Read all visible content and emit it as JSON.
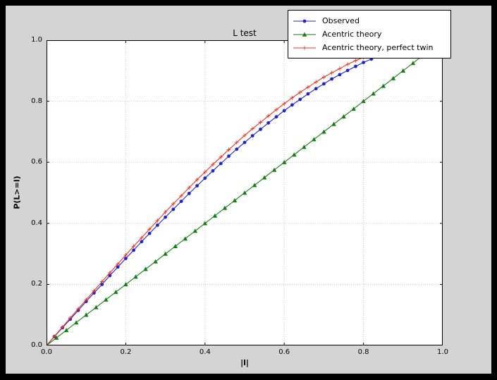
{
  "colors": {
    "outer_bg": "#000000",
    "figure_bg": "#d4d4d4",
    "plot_bg": "#ffffff",
    "grid": "#c8c8c8",
    "axis": "#000000"
  },
  "chart_data": {
    "type": "line",
    "title": "L test",
    "xlabel": "|l|",
    "ylabel": "P(L>=l)",
    "xlim": [
      0.0,
      1.0
    ],
    "ylim": [
      0.0,
      1.0
    ],
    "x_ticks": [
      "0.0",
      "0.2",
      "0.4",
      "0.6",
      "0.8",
      "1.0"
    ],
    "y_ticks": [
      "0.0",
      "0.2",
      "0.4",
      "0.6",
      "0.8",
      "1.0"
    ],
    "grid": "dotted",
    "legend_position": "upper right",
    "series": [
      {
        "name": "Observed",
        "color": "#2222cc",
        "marker": "circle",
        "x": [
          0,
          0.02,
          0.04,
          0.06,
          0.08,
          0.1,
          0.12,
          0.14,
          0.16,
          0.18,
          0.2,
          0.22,
          0.24,
          0.26,
          0.28,
          0.3,
          0.32,
          0.34,
          0.36,
          0.38,
          0.4,
          0.42,
          0.44,
          0.46,
          0.48,
          0.5,
          0.52,
          0.54,
          0.56,
          0.58,
          0.6,
          0.62,
          0.64,
          0.66,
          0.68,
          0.7,
          0.72,
          0.74,
          0.76,
          0.78,
          0.8,
          0.82,
          0.84,
          0.86
        ],
        "y": [
          0,
          0.029,
          0.058,
          0.086,
          0.115,
          0.144,
          0.172,
          0.2,
          0.229,
          0.257,
          0.285,
          0.312,
          0.34,
          0.367,
          0.394,
          0.42,
          0.446,
          0.472,
          0.498,
          0.523,
          0.548,
          0.572,
          0.596,
          0.62,
          0.643,
          0.665,
          0.687,
          0.708,
          0.729,
          0.749,
          0.769,
          0.788,
          0.806,
          0.824,
          0.841,
          0.857,
          0.873,
          0.887,
          0.901,
          0.914,
          0.927,
          0.938,
          0.949,
          0.959
        ]
      },
      {
        "name": "Acentric theory",
        "color": "#118011",
        "marker": "triangle",
        "x": [
          0,
          0.025,
          0.05,
          0.075,
          0.1,
          0.125,
          0.15,
          0.175,
          0.2,
          0.225,
          0.25,
          0.275,
          0.3,
          0.325,
          0.35,
          0.375,
          0.4,
          0.425,
          0.45,
          0.475,
          0.5,
          0.525,
          0.55,
          0.575,
          0.6,
          0.625,
          0.65,
          0.675,
          0.7,
          0.725,
          0.75,
          0.775,
          0.8,
          0.825,
          0.85,
          0.875,
          0.9,
          0.925,
          0.95,
          0.975
        ],
        "y": [
          0,
          0.025,
          0.05,
          0.075,
          0.1,
          0.125,
          0.15,
          0.175,
          0.2,
          0.225,
          0.25,
          0.275,
          0.3,
          0.325,
          0.35,
          0.375,
          0.4,
          0.425,
          0.45,
          0.475,
          0.5,
          0.525,
          0.55,
          0.575,
          0.6,
          0.625,
          0.65,
          0.675,
          0.7,
          0.725,
          0.75,
          0.775,
          0.8,
          0.825,
          0.85,
          0.875,
          0.9,
          0.925,
          0.95,
          0.975
        ]
      },
      {
        "name": "Acentric theory, perfect twin",
        "color": "#ee3322",
        "marker": "plus",
        "x": [
          0,
          0.02,
          0.04,
          0.06,
          0.08,
          0.1,
          0.12,
          0.14,
          0.16,
          0.18,
          0.2,
          0.22,
          0.24,
          0.26,
          0.28,
          0.3,
          0.32,
          0.34,
          0.36,
          0.38,
          0.4,
          0.42,
          0.44,
          0.46,
          0.48,
          0.5,
          0.52,
          0.54,
          0.56,
          0.58,
          0.6,
          0.62,
          0.64,
          0.66,
          0.68,
          0.7,
          0.72,
          0.74,
          0.76,
          0.78,
          0.8,
          0.82,
          0.84,
          0.86,
          0.88
        ],
        "y": [
          0,
          0.03,
          0.06,
          0.09,
          0.12,
          0.15,
          0.179,
          0.209,
          0.238,
          0.267,
          0.296,
          0.325,
          0.353,
          0.381,
          0.409,
          0.437,
          0.464,
          0.49,
          0.517,
          0.543,
          0.568,
          0.593,
          0.617,
          0.641,
          0.665,
          0.688,
          0.71,
          0.731,
          0.752,
          0.772,
          0.792,
          0.811,
          0.829,
          0.846,
          0.863,
          0.879,
          0.893,
          0.907,
          0.921,
          0.933,
          0.944,
          0.954,
          0.964,
          0.972,
          0.979
        ]
      }
    ]
  }
}
